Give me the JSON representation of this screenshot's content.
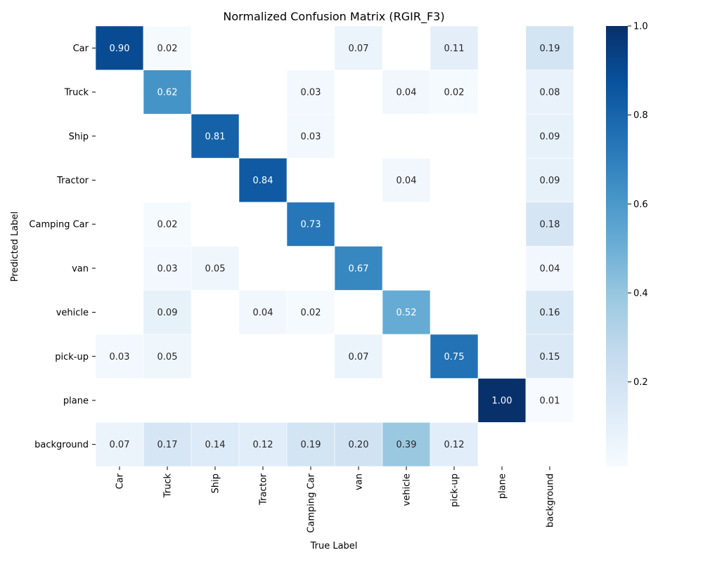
{
  "chart_data": {
    "type": "heatmap",
    "title": "Normalized Confusion Matrix (RGIR_F3)",
    "xlabel": "True Label",
    "ylabel": "Predicted Label",
    "x_categories": [
      "Car",
      "Truck",
      "Ship",
      "Tractor",
      "Camping Car",
      "van",
      "vehicle",
      "pick-up",
      "plane",
      "background"
    ],
    "y_categories": [
      "Car",
      "Truck",
      "Ship",
      "Tractor",
      "Camping Car",
      "van",
      "vehicle",
      "pick-up",
      "plane",
      "background"
    ],
    "values": [
      [
        0.9,
        0.02,
        null,
        null,
        null,
        0.07,
        null,
        0.11,
        null,
        0.19
      ],
      [
        null,
        0.62,
        null,
        null,
        0.03,
        null,
        0.04,
        0.02,
        null,
        0.08
      ],
      [
        null,
        null,
        0.81,
        null,
        0.03,
        null,
        null,
        null,
        null,
        0.09
      ],
      [
        null,
        null,
        null,
        0.84,
        null,
        null,
        0.04,
        null,
        null,
        0.09
      ],
      [
        null,
        0.02,
        null,
        null,
        0.73,
        null,
        null,
        null,
        null,
        0.18
      ],
      [
        null,
        0.03,
        0.05,
        null,
        null,
        0.67,
        null,
        null,
        null,
        0.04
      ],
      [
        null,
        0.09,
        null,
        0.04,
        0.02,
        null,
        0.52,
        null,
        null,
        0.16
      ],
      [
        0.03,
        0.05,
        null,
        null,
        null,
        0.07,
        null,
        0.75,
        null,
        0.15
      ],
      [
        null,
        null,
        null,
        null,
        null,
        null,
        null,
        null,
        1.0,
        0.01
      ],
      [
        0.07,
        0.17,
        0.14,
        0.12,
        0.19,
        0.2,
        0.39,
        0.12,
        null,
        null
      ]
    ],
    "value_format": "0.00",
    "colormap": "Blues",
    "colorbar": {
      "range": [
        0.01,
        1.0
      ],
      "ticks": [
        "0.2",
        "0.4",
        "0.6",
        "0.8",
        "1.0"
      ],
      "tick_values": [
        0.2,
        0.4,
        0.6,
        0.8,
        1.0
      ]
    },
    "grid": false,
    "colors": {
      "colormap_stops": [
        "#f7fbff",
        "#deebf7",
        "#c6dbef",
        "#9ecae1",
        "#6baed6",
        "#4292c6",
        "#2171b5",
        "#08519c",
        "#08306b"
      ],
      "cell_border": "#ffffff",
      "text_dark": "#262626",
      "text_light": "#ffffff"
    }
  }
}
